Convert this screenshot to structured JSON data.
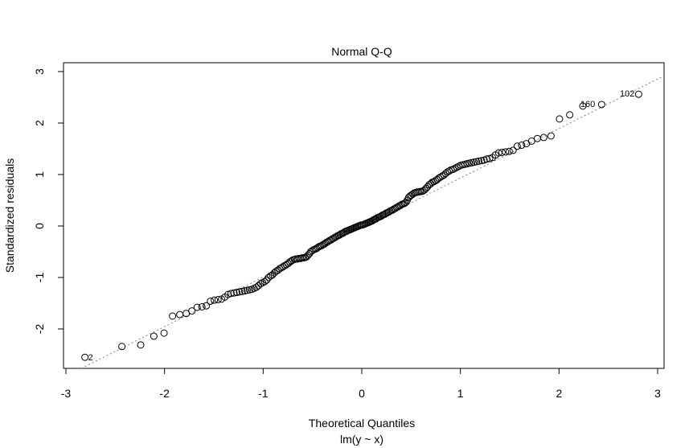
{
  "chart_data": {
    "type": "scatter",
    "title": "Normal Q-Q",
    "xlabel": "Theoretical Quantiles",
    "sublabel": "lm(y ~ x)",
    "ylabel": "Standardized residuals",
    "xlim": [
      -3,
      3
    ],
    "ylim": [
      -2.8,
      2.9
    ],
    "xticks": [
      "-3",
      "-2",
      "-1",
      "0",
      "1",
      "2",
      "3"
    ],
    "yticks": [
      "-2",
      "-1",
      "0",
      "1",
      "2",
      "3"
    ],
    "grid": false,
    "n": 200,
    "x_note": "theoretical normal quantiles of ppoints(200)",
    "sample_quantiles": [
      -2.55,
      -2.34,
      -2.31,
      -2.14,
      -2.08,
      -1.75,
      -1.72,
      -1.7,
      -1.65,
      -1.58,
      -1.57,
      -1.55,
      -1.46,
      -1.44,
      -1.43,
      -1.42,
      -1.38,
      -1.33,
      -1.31,
      -1.3,
      -1.29,
      -1.28,
      -1.27,
      -1.26,
      -1.25,
      -1.24,
      -1.23,
      -1.21,
      -1.19,
      -1.16,
      -1.12,
      -1.1,
      -1.08,
      -1.05,
      -1.0,
      -0.97,
      -0.95,
      -0.91,
      -0.88,
      -0.86,
      -0.83,
      -0.81,
      -0.79,
      -0.77,
      -0.75,
      -0.73,
      -0.7,
      -0.68,
      -0.66,
      -0.65,
      -0.64,
      -0.64,
      -0.63,
      -0.63,
      -0.62,
      -0.62,
      -0.61,
      -0.6,
      -0.57,
      -0.54,
      -0.5,
      -0.48,
      -0.46,
      -0.45,
      -0.44,
      -0.42,
      -0.4,
      -0.39,
      -0.38,
      -0.36,
      -0.35,
      -0.33,
      -0.31,
      -0.3,
      -0.28,
      -0.27,
      -0.25,
      -0.24,
      -0.22,
      -0.21,
      -0.19,
      -0.18,
      -0.17,
      -0.15,
      -0.14,
      -0.13,
      -0.11,
      -0.1,
      -0.09,
      -0.08,
      -0.07,
      -0.06,
      -0.05,
      -0.04,
      -0.03,
      -0.02,
      -0.01,
      0.0,
      0.01,
      0.02,
      0.02,
      0.03,
      0.04,
      0.05,
      0.06,
      0.07,
      0.08,
      0.09,
      0.1,
      0.12,
      0.13,
      0.14,
      0.16,
      0.17,
      0.18,
      0.19,
      0.21,
      0.22,
      0.23,
      0.25,
      0.26,
      0.27,
      0.29,
      0.3,
      0.31,
      0.33,
      0.34,
      0.36,
      0.37,
      0.39,
      0.4,
      0.42,
      0.43,
      0.44,
      0.46,
      0.5,
      0.55,
      0.58,
      0.6,
      0.62,
      0.64,
      0.65,
      0.66,
      0.66,
      0.67,
      0.67,
      0.68,
      0.7,
      0.73,
      0.76,
      0.8,
      0.82,
      0.85,
      0.86,
      0.88,
      0.9,
      0.93,
      0.95,
      0.97,
      0.99,
      1.02,
      1.05,
      1.07,
      1.09,
      1.1,
      1.12,
      1.14,
      1.16,
      1.18,
      1.19,
      1.2,
      1.21,
      1.22,
      1.23,
      1.24,
      1.25,
      1.26,
      1.27,
      1.28,
      1.3,
      1.31,
      1.33,
      1.38,
      1.42,
      1.43,
      1.44,
      1.45,
      1.47,
      1.55,
      1.57,
      1.6,
      1.65,
      1.7,
      1.72,
      1.75,
      2.08,
      2.16,
      2.33,
      2.36,
      2.56
    ],
    "reference_line": {
      "intercept": -0.03,
      "slope": 0.962,
      "style": "dotted",
      "color": "#808080"
    },
    "point_labels": [
      {
        "rank": 1,
        "text": "2",
        "side": "right"
      },
      {
        "rank": 198,
        "text": "160",
        "side": "right"
      },
      {
        "rank": 200,
        "text": "102",
        "side": "left"
      }
    ]
  }
}
